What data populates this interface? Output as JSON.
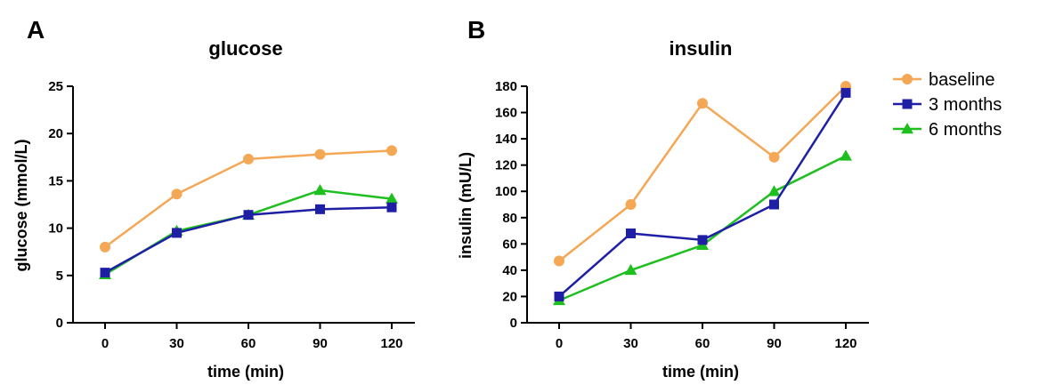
{
  "panels": [
    {
      "letter": "A"
    },
    {
      "letter": "B"
    }
  ],
  "chart_data": [
    {
      "type": "line",
      "title": "glucose",
      "xlabel": "time (min)",
      "ylabel": "glucose (mmol/L)",
      "categories": [
        "0",
        "30",
        "60",
        "90",
        "120"
      ],
      "ylim": [
        0,
        25
      ],
      "yticks": [
        "0",
        "5",
        "10",
        "15",
        "20",
        "25"
      ],
      "series": [
        {
          "name": "baseline",
          "values": [
            8.0,
            13.6,
            17.3,
            17.8,
            18.2
          ]
        },
        {
          "name": "3 months",
          "values": [
            5.3,
            9.5,
            11.4,
            12.0,
            12.2
          ]
        },
        {
          "name": "6 months",
          "values": [
            5.1,
            9.7,
            11.4,
            14.0,
            13.1
          ]
        }
      ]
    },
    {
      "type": "line",
      "title": "insulin",
      "xlabel": "time (min)",
      "ylabel": "insulin (mU/L)",
      "categories": [
        "0",
        "30",
        "60",
        "90",
        "120"
      ],
      "ylim": [
        0,
        180
      ],
      "yticks": [
        "0",
        "20",
        "40",
        "60",
        "80",
        "100",
        "120",
        "140",
        "160",
        "180"
      ],
      "series": [
        {
          "name": "baseline",
          "values": [
            47,
            90,
            167,
            126,
            180
          ]
        },
        {
          "name": "3 months",
          "values": [
            20,
            68,
            63,
            90,
            175
          ]
        },
        {
          "name": "6 months",
          "values": [
            17,
            40,
            59,
            100,
            127
          ]
        }
      ]
    }
  ],
  "legend": {
    "placement": "right",
    "items": [
      {
        "label": "baseline",
        "color": "#F4A755",
        "marker": "circle"
      },
      {
        "label": "3 months",
        "color": "#1F1FA6",
        "marker": "square"
      },
      {
        "label": "6 months",
        "color": "#1FBF1F",
        "marker": "triangle"
      }
    ]
  }
}
